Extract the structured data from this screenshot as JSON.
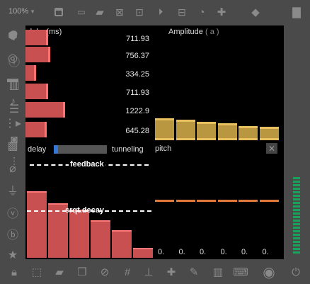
{
  "toolbar": {
    "zoom": "100%",
    "icons": [
      "window-icon",
      "message-box-icon",
      "comment-icon",
      "x-box-icon",
      "circle-box-icon",
      "play-box-icon",
      "minus-box-icon",
      "gauge-icon",
      "plus-icon",
      "paint-bucket-icon",
      "trash-icon"
    ]
  },
  "left_tools": [
    "cube-icon",
    "target-icon",
    "bus-icon",
    "music-note-icon",
    "sequence-icon",
    "image-icon",
    "paperclip-icon",
    "plug-icon",
    "v-circle-icon",
    "b-circle-icon",
    "star-icon"
  ],
  "right_tools": [
    "search-icon",
    "info-icon",
    "book-icon",
    "list-icon",
    "camera-icon",
    "sliders-icon"
  ],
  "bottom_tools": [
    "lock-icon",
    "select-icon",
    "chat-icon",
    "copy-icon",
    "no-camera-icon",
    "grid-icon",
    "hierarchy-icon",
    "add-icon",
    "wrench-icon",
    "piano-icon",
    "keyboard-icon",
    "record-icon",
    "power-icon"
  ],
  "delay_panel": {
    "label": "delay",
    "unit": "(ms)",
    "rows": [
      {
        "value": "711.93",
        "fraction": 0.58
      },
      {
        "value": "756.37",
        "fraction": 0.62
      },
      {
        "value": "334.25",
        "fraction": 0.27
      },
      {
        "value": "711.93",
        "fraction": 0.58
      },
      {
        "value": "1222.9",
        "fraction": 1.0
      },
      {
        "value": "645.28",
        "fraction": 0.53
      }
    ]
  },
  "amplitude_panel": {
    "label": "Amplitude",
    "unit": "( a )",
    "levels": [
      0.52,
      0.48,
      0.44,
      0.4,
      0.34,
      0.32
    ]
  },
  "tunneling_panel": {
    "left_label": "delay",
    "right_label": "tunneling",
    "slider_fraction": 0.06
  },
  "feedback_panel": {
    "feedback_label": "feedback",
    "srqt_label": "srqt.decay",
    "levels": [
      1.0,
      0.82,
      0.72,
      0.56,
      0.42,
      0.15
    ]
  },
  "pitch_panel": {
    "label": "pitch",
    "values": [
      "0.",
      "0.",
      "0.",
      "0.",
      "0.",
      "0."
    ]
  }
}
